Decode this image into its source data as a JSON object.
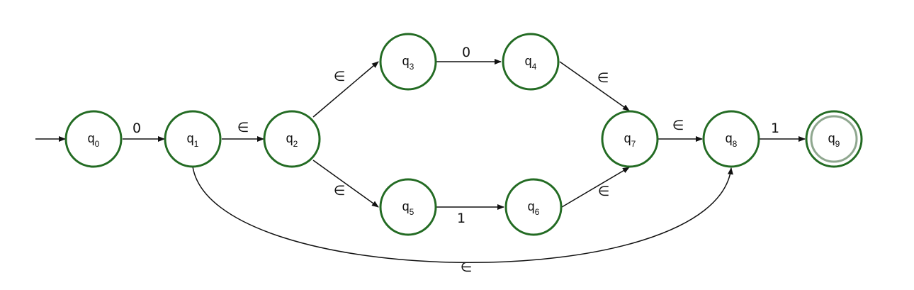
{
  "colors": {
    "state_stroke": "#236b23",
    "accept_inner": "#8fa78f",
    "edge": "#111111",
    "background": "#ffffff"
  },
  "start_state": "q0",
  "accepting_states": [
    "q9"
  ],
  "states": [
    {
      "id": "q0",
      "base": "q",
      "sub": "0"
    },
    {
      "id": "q1",
      "base": "q",
      "sub": "1"
    },
    {
      "id": "q2",
      "base": "q",
      "sub": "2"
    },
    {
      "id": "q3",
      "base": "q",
      "sub": "3"
    },
    {
      "id": "q4",
      "base": "q",
      "sub": "4"
    },
    {
      "id": "q5",
      "base": "q",
      "sub": "5"
    },
    {
      "id": "q6",
      "base": "q",
      "sub": "6"
    },
    {
      "id": "q7",
      "base": "q",
      "sub": "7"
    },
    {
      "id": "q8",
      "base": "q",
      "sub": "8"
    },
    {
      "id": "q9",
      "base": "q",
      "sub": "9"
    }
  ],
  "transitions": [
    {
      "from": "q0",
      "to": "q1",
      "label": "0"
    },
    {
      "from": "q1",
      "to": "q2",
      "label": "∈"
    },
    {
      "from": "q2",
      "to": "q3",
      "label": "∈"
    },
    {
      "from": "q3",
      "to": "q4",
      "label": "0"
    },
    {
      "from": "q4",
      "to": "q7",
      "label": "∈"
    },
    {
      "from": "q2",
      "to": "q5",
      "label": "∈"
    },
    {
      "from": "q5",
      "to": "q6",
      "label": "1"
    },
    {
      "from": "q6",
      "to": "q7",
      "label": "∈"
    },
    {
      "from": "q7",
      "to": "q8",
      "label": "∈"
    },
    {
      "from": "q8",
      "to": "q9",
      "label": "1"
    },
    {
      "from": "q1",
      "to": "q8",
      "label": "∈"
    }
  ]
}
